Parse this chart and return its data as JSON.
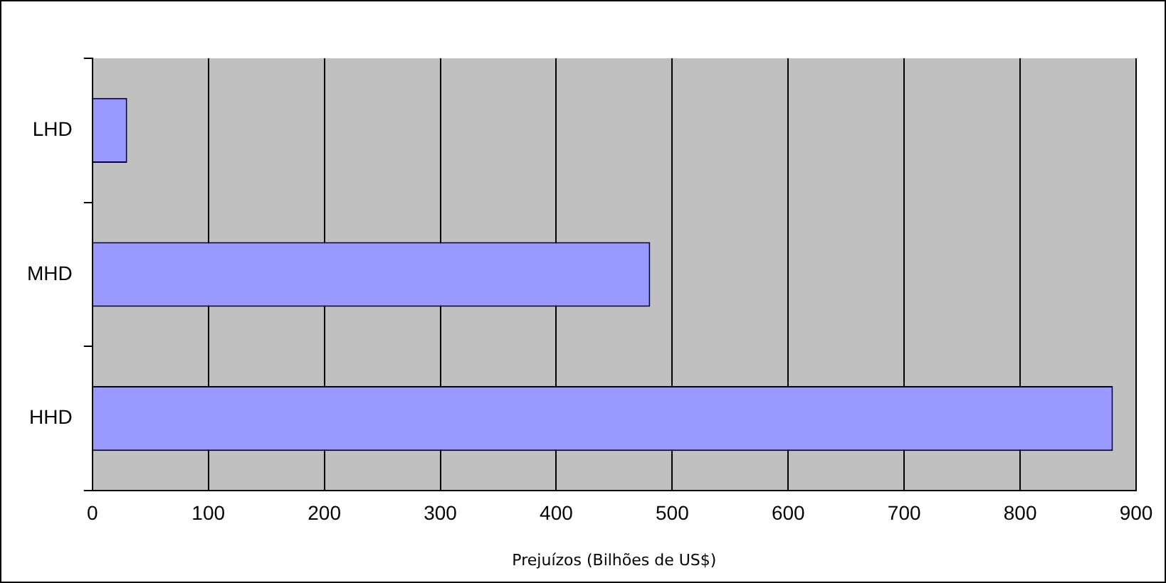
{
  "chart_data": {
    "type": "bar",
    "orientation": "horizontal",
    "xlabel": "Prejuízos (Bilhões de US$)",
    "categories": [
      "LHD",
      "MHD",
      "HHD"
    ],
    "values": [
      30,
      481,
      880
    ],
    "color": "#9999ff",
    "xlim": [
      0,
      900
    ],
    "xticks": [
      0,
      100,
      200,
      300,
      400,
      500,
      600,
      700,
      800,
      900
    ],
    "grid": "x",
    "legend": false
  }
}
